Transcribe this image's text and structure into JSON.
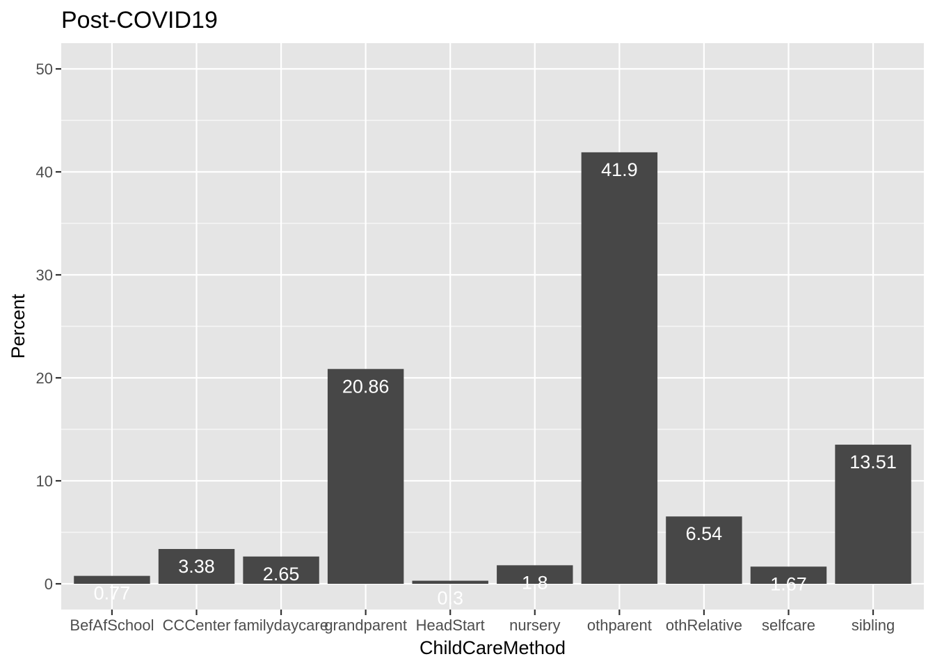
{
  "chart_data": {
    "type": "bar",
    "title": "Post-COVID19",
    "xlabel": "ChildCareMethod",
    "ylabel": "Percent",
    "categories": [
      "BefAfSchool",
      "CCCenter",
      "familydaycare",
      "grandparent",
      "HeadStart",
      "nursery",
      "othparent",
      "othRelative",
      "selfcare",
      "sibling"
    ],
    "values": [
      0.77,
      3.38,
      2.65,
      20.86,
      0.3,
      1.8,
      41.9,
      6.54,
      1.67,
      13.51
    ],
    "data_labels": [
      "0.77",
      "3.38",
      "2.65",
      "20.86",
      "0.3",
      "1.8",
      "41.9",
      "6.54",
      "1.67",
      "13.51"
    ],
    "yticks": [
      0,
      10,
      20,
      30,
      40,
      50
    ],
    "ylim": [
      -2.5,
      52.5
    ],
    "grid": true,
    "colors": {
      "panel_background": "#e5e5e5",
      "grid": "#ffffff",
      "bar": "#474747",
      "data_label": "#ffffff",
      "tick": "#333333"
    }
  }
}
